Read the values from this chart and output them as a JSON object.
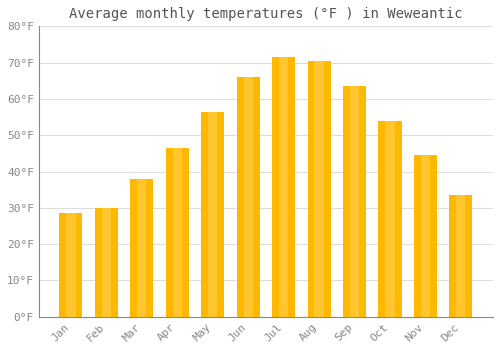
{
  "title": "Average monthly temperatures (°F ) in Weweantic",
  "months": [
    "Jan",
    "Feb",
    "Mar",
    "Apr",
    "May",
    "Jun",
    "Jul",
    "Aug",
    "Sep",
    "Oct",
    "Nov",
    "Dec"
  ],
  "values": [
    28.5,
    30.0,
    38.0,
    46.5,
    56.5,
    66.0,
    71.5,
    70.5,
    63.5,
    54.0,
    44.5,
    33.5
  ],
  "bar_color_left": "#F5A800",
  "bar_color_right": "#FFD050",
  "bar_color_mid": "#FFB800",
  "background_color": "#FFFFFF",
  "grid_color": "#DDDDDD",
  "text_color": "#888888",
  "title_color": "#555555",
  "ylim": [
    0,
    80
  ],
  "yticks": [
    0,
    10,
    20,
    30,
    40,
    50,
    60,
    70,
    80
  ],
  "title_fontsize": 10,
  "tick_fontsize": 8,
  "font_family": "monospace"
}
